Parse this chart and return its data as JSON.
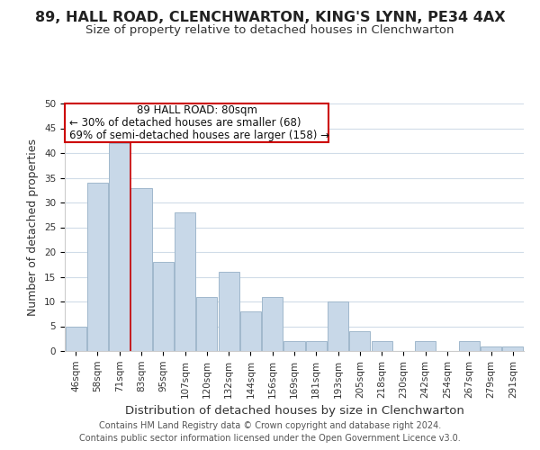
{
  "title": "89, HALL ROAD, CLENCHWARTON, KING'S LYNN, PE34 4AX",
  "subtitle": "Size of property relative to detached houses in Clenchwarton",
  "xlabel": "Distribution of detached houses by size in Clenchwarton",
  "ylabel": "Number of detached properties",
  "bin_labels": [
    "46sqm",
    "58sqm",
    "71sqm",
    "83sqm",
    "95sqm",
    "107sqm",
    "120sqm",
    "132sqm",
    "144sqm",
    "156sqm",
    "169sqm",
    "181sqm",
    "193sqm",
    "205sqm",
    "218sqm",
    "230sqm",
    "242sqm",
    "254sqm",
    "267sqm",
    "279sqm",
    "291sqm"
  ],
  "bar_values": [
    5,
    34,
    42,
    33,
    18,
    28,
    11,
    16,
    8,
    11,
    2,
    2,
    10,
    4,
    2,
    0,
    2,
    0,
    2,
    1,
    1
  ],
  "bar_color": "#c8d8e8",
  "bar_edge_color": "#a0b8cc",
  "vline_x_index": 3,
  "vline_color": "#cc0000",
  "annotation_line1": "89 HALL ROAD: 80sqm",
  "annotation_line2": "← 30% of detached houses are smaller (68)",
  "annotation_line3": "69% of semi-detached houses are larger (158) →",
  "ylim": [
    0,
    50
  ],
  "yticks": [
    0,
    5,
    10,
    15,
    20,
    25,
    30,
    35,
    40,
    45,
    50
  ],
  "footer_line1": "Contains HM Land Registry data © Crown copyright and database right 2024.",
  "footer_line2": "Contains public sector information licensed under the Open Government Licence v3.0.",
  "background_color": "#ffffff",
  "grid_color": "#d0dce8",
  "title_fontsize": 11.5,
  "subtitle_fontsize": 9.5,
  "xlabel_fontsize": 9.5,
  "ylabel_fontsize": 9,
  "tick_fontsize": 7.5,
  "annotation_fontsize": 8.5,
  "footer_fontsize": 7
}
